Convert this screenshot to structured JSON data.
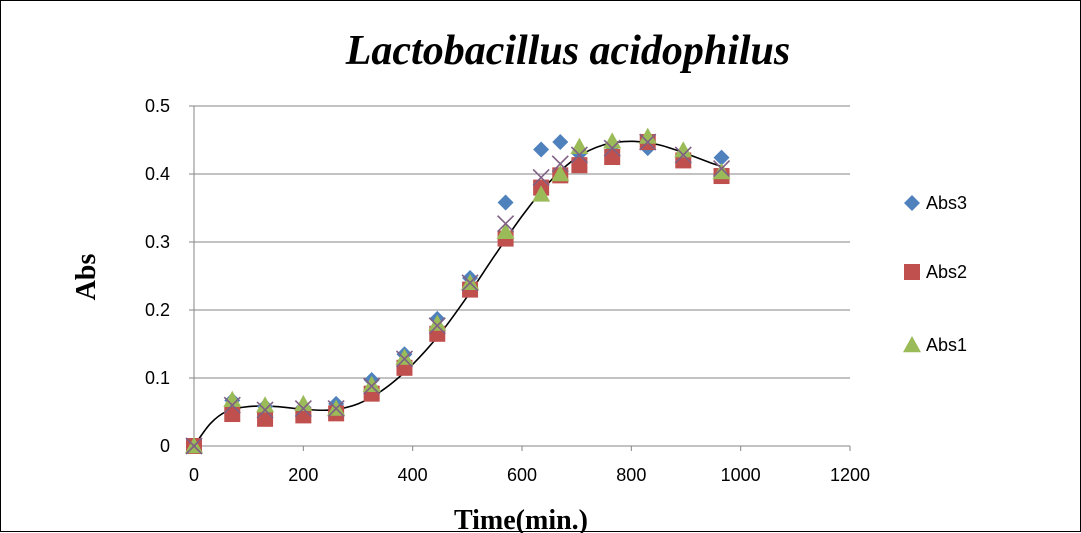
{
  "chart_data": {
    "type": "scatter",
    "title": "Lactobacillus acidophilus",
    "xlabel": "Time(min.)",
    "ylabel": "Abs",
    "xlim": [
      0,
      1200
    ],
    "ylim": [
      0,
      0.5
    ],
    "x_ticks": [
      "0",
      "200",
      "400",
      "600",
      "800",
      "1000",
      "1200"
    ],
    "y_ticks": [
      "0",
      "0.1",
      "0.2",
      "0.3",
      "0.4",
      "0.5"
    ],
    "grid": "horizontal",
    "legend_position": "right",
    "series": [
      {
        "name": "Abs3",
        "marker": "diamond",
        "color": "#4f81bd",
        "points": [
          [
            0,
            0
          ],
          [
            70,
            0.067
          ],
          [
            130,
            0.058
          ],
          [
            200,
            0.057
          ],
          [
            260,
            0.062
          ],
          [
            325,
            0.097
          ],
          [
            385,
            0.135
          ],
          [
            445,
            0.187
          ],
          [
            505,
            0.247
          ],
          [
            570,
            0.358
          ],
          [
            635,
            0.436
          ],
          [
            670,
            0.447
          ],
          [
            705,
            0.43
          ],
          [
            765,
            0.44
          ],
          [
            830,
            0.438
          ],
          [
            895,
            0.428
          ],
          [
            965,
            0.424
          ]
        ]
      },
      {
        "name": "Abs2",
        "marker": "square",
        "color": "#c0504d",
        "points": [
          [
            0,
            0
          ],
          [
            70,
            0.047
          ],
          [
            130,
            0.04
          ],
          [
            200,
            0.045
          ],
          [
            260,
            0.048
          ],
          [
            325,
            0.077
          ],
          [
            385,
            0.115
          ],
          [
            445,
            0.165
          ],
          [
            505,
            0.23
          ],
          [
            570,
            0.305
          ],
          [
            635,
            0.38
          ],
          [
            670,
            0.398
          ],
          [
            705,
            0.413
          ],
          [
            765,
            0.425
          ],
          [
            830,
            0.447
          ],
          [
            895,
            0.42
          ],
          [
            965,
            0.397
          ]
        ]
      },
      {
        "name": "Abs1",
        "marker": "triangle",
        "color": "#9bbb59",
        "points": [
          [
            0,
            0
          ],
          [
            70,
            0.068
          ],
          [
            130,
            0.06
          ],
          [
            200,
            0.062
          ],
          [
            260,
            0.055
          ],
          [
            325,
            0.09
          ],
          [
            385,
            0.13
          ],
          [
            445,
            0.18
          ],
          [
            505,
            0.24
          ],
          [
            570,
            0.315
          ],
          [
            635,
            0.37
          ],
          [
            670,
            0.4
          ],
          [
            705,
            0.44
          ],
          [
            765,
            0.448
          ],
          [
            830,
            0.455
          ],
          [
            895,
            0.435
          ],
          [
            965,
            0.403
          ]
        ]
      },
      {
        "marker": "x",
        "color": "#7f6084",
        "points": [
          [
            0,
            0
          ],
          [
            70,
            0.06
          ],
          [
            130,
            0.053
          ],
          [
            200,
            0.055
          ],
          [
            260,
            0.055
          ],
          [
            325,
            0.088
          ],
          [
            385,
            0.128
          ],
          [
            445,
            0.177
          ],
          [
            505,
            0.24
          ],
          [
            570,
            0.327
          ],
          [
            635,
            0.395
          ],
          [
            670,
            0.415
          ],
          [
            705,
            0.428
          ],
          [
            765,
            0.438
          ],
          [
            830,
            0.447
          ],
          [
            895,
            0.428
          ],
          [
            965,
            0.408
          ]
        ]
      }
    ],
    "trendline": {
      "color": "#000000",
      "points": [
        [
          0,
          0
        ],
        [
          30,
          0.033
        ],
        [
          60,
          0.051
        ],
        [
          100,
          0.058
        ],
        [
          150,
          0.058
        ],
        [
          200,
          0.054
        ],
        [
          250,
          0.053
        ],
        [
          300,
          0.062
        ],
        [
          350,
          0.085
        ],
        [
          400,
          0.12
        ],
        [
          450,
          0.165
        ],
        [
          500,
          0.22
        ],
        [
          550,
          0.28
        ],
        [
          600,
          0.338
        ],
        [
          650,
          0.388
        ],
        [
          700,
          0.424
        ],
        [
          750,
          0.443
        ],
        [
          800,
          0.448
        ],
        [
          850,
          0.443
        ],
        [
          900,
          0.43
        ],
        [
          950,
          0.415
        ],
        [
          970,
          0.41
        ]
      ]
    }
  }
}
